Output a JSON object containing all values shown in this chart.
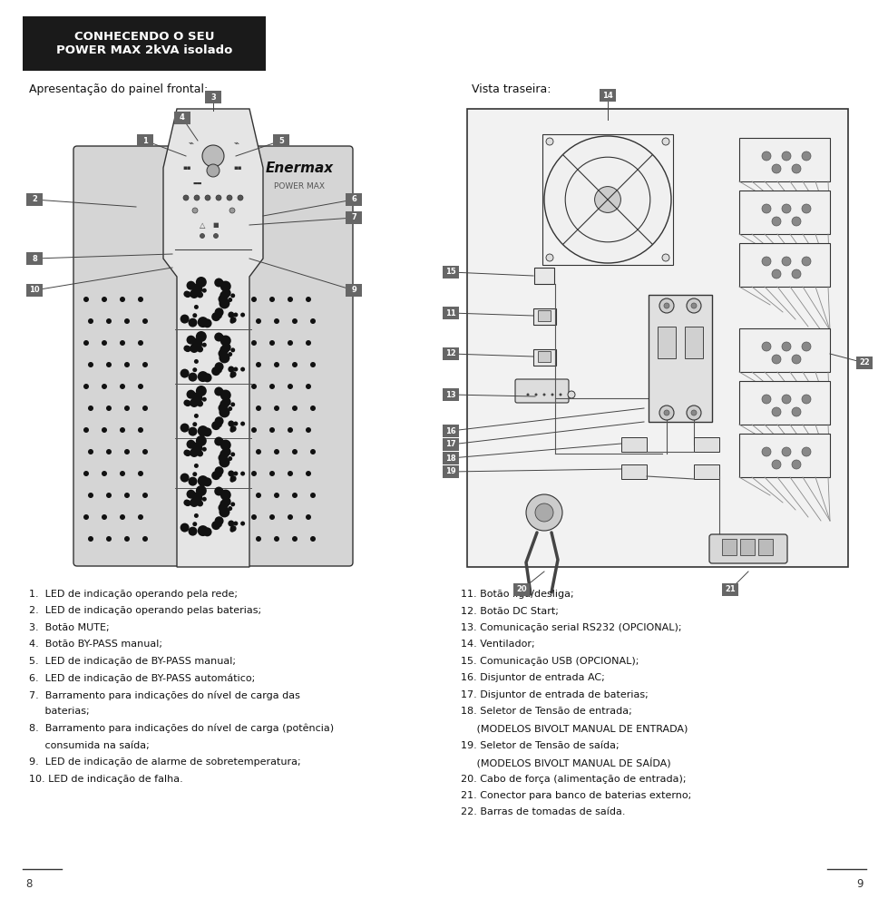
{
  "title_box_text": "CONHECENDO O SEU\nPOWER MAX 2kVA isolado",
  "subtitle_left": "Apresentação do painel frontal:",
  "subtitle_right": "Vista traseira:",
  "bg_color": "#ffffff",
  "title_bg": "#1a1a1a",
  "title_fg": "#ffffff",
  "label_bg": "#666666",
  "label_fg": "#ffffff",
  "body_text_color": "#111111",
  "page_left": "8",
  "page_right": "9",
  "left_items": [
    "1.  LED de indicação operando pela rede;",
    "2.  LED de indicação operando pelas baterias;",
    "3.  Botão MUTE;",
    "4.  Botão BY-PASS manual;",
    "5.  LED de indicação de BY-PASS manual;",
    "6.  LED de indicação de BY-PASS automático;",
    "7.  Barramento para indicações do nível de carga das|     baterias;",
    "8.  Barramento para indicações do nível de carga (potência)|     consumida na saída;",
    "9.  LED de indicação de alarme de sobretemperatura;",
    "10. LED de indicação de falha."
  ],
  "right_items": [
    "11. Botão liga/desliga;",
    "12. Botão DC Start;",
    "13. Comunicação serial RS232 (OPCIONAL);",
    "14. Ventilador;",
    "15. Comunicação USB (OPCIONAL);",
    "16. Disjuntor de entrada AC;",
    "17. Disjuntor de entrada de baterias;",
    "18. Seletor de Tensão de entrada;|     (MODELOS BIVOLT MANUAL DE ENTRADA)",
    "19. Seletor de Tensão de saída;|     (MODELOS BIVOLT MANUAL DE SAÍDA)",
    "20. Cabo de força (alimentação de entrada);",
    "21. Conector para banco de baterias externo;",
    "22. Barras de tomadas de saída."
  ]
}
